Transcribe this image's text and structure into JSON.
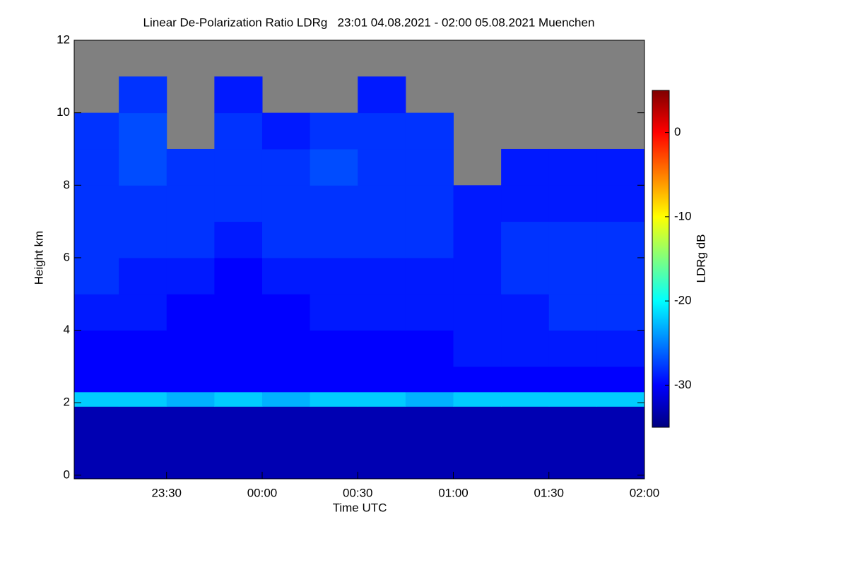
{
  "chart_data": {
    "type": "heatmap",
    "title": "Linear De-Polarization Ratio LDRg   23:01 04.08.2021 - 02:00 05.08.2021 Muenchen",
    "x_label": "Time UTC",
    "y_label": "Height km",
    "colorbar_label": "LDRg dB",
    "xlim": [
      1,
      180
    ],
    "xticks": [
      {
        "value": 30,
        "label": "23:30"
      },
      {
        "value": 60,
        "label": "00:00"
      },
      {
        "value": 90,
        "label": "00:30"
      },
      {
        "value": 120,
        "label": "01:00"
      },
      {
        "value": 150,
        "label": "01:30"
      },
      {
        "value": 180,
        "label": "02:00"
      }
    ],
    "ylim": [
      -0.1,
      12
    ],
    "yticks": [
      0,
      2,
      4,
      6,
      8,
      10,
      12
    ],
    "zlim": [
      -35,
      5
    ],
    "zticks": [
      0,
      -10,
      -20,
      -30
    ],
    "colorscale": [
      "#00007f",
      "#0000ff",
      "#007fff",
      "#00ffff",
      "#7fff7f",
      "#ffff00",
      "#ff7f00",
      "#ff0000",
      "#7f0000"
    ],
    "missing_color": "#808080",
    "x_edges": [
      1,
      15,
      30,
      45,
      60,
      75,
      90,
      105,
      120,
      135,
      150,
      165,
      180
    ],
    "y_edges": [
      -0.1,
      1.9,
      2.3,
      3,
      4,
      5,
      6,
      7,
      8,
      9,
      10,
      11,
      12
    ],
    "values": [
      [
        -33,
        -33,
        -33,
        -33,
        -33,
        -33,
        -33,
        -33,
        -33,
        -33,
        -33,
        -33
      ],
      [
        -22,
        -22,
        -23,
        -22,
        -23,
        -22,
        -22,
        -23,
        -22,
        -22,
        -22,
        -22
      ],
      [
        -30,
        -30,
        -30,
        -30,
        -30,
        -30,
        -30,
        -30,
        -30,
        -30,
        -30,
        -30
      ],
      [
        -30,
        -30,
        -30,
        -30,
        -30,
        -30,
        -30,
        -30,
        -29,
        -29,
        -29,
        -29
      ],
      [
        -29,
        -29,
        -30,
        -30,
        -30,
        -29,
        -29,
        -29,
        -29,
        -29,
        -28,
        -28
      ],
      [
        -28,
        -29,
        -29,
        -30,
        -29,
        -29,
        -29,
        -29,
        -29,
        -28,
        -28,
        -28
      ],
      [
        -28,
        -28,
        -28,
        -29,
        -28,
        -28,
        -28,
        -28,
        -29,
        -28,
        -28,
        -28
      ],
      [
        -28,
        -28,
        -28,
        -28,
        -28,
        -28,
        -28,
        -28,
        -29,
        -29,
        -29,
        -29
      ],
      [
        -28,
        -27,
        -28,
        -28,
        -28,
        -27,
        -28,
        -28,
        null,
        -29,
        -29,
        -29
      ],
      [
        -28,
        -27,
        null,
        -28,
        -29,
        -28,
        -28,
        -28,
        null,
        null,
        null,
        null
      ],
      [
        null,
        -28,
        null,
        -29,
        null,
        null,
        -29,
        null,
        null,
        null,
        null,
        null
      ],
      [
        null,
        null,
        null,
        null,
        null,
        null,
        null,
        null,
        null,
        null,
        null,
        null
      ]
    ]
  }
}
